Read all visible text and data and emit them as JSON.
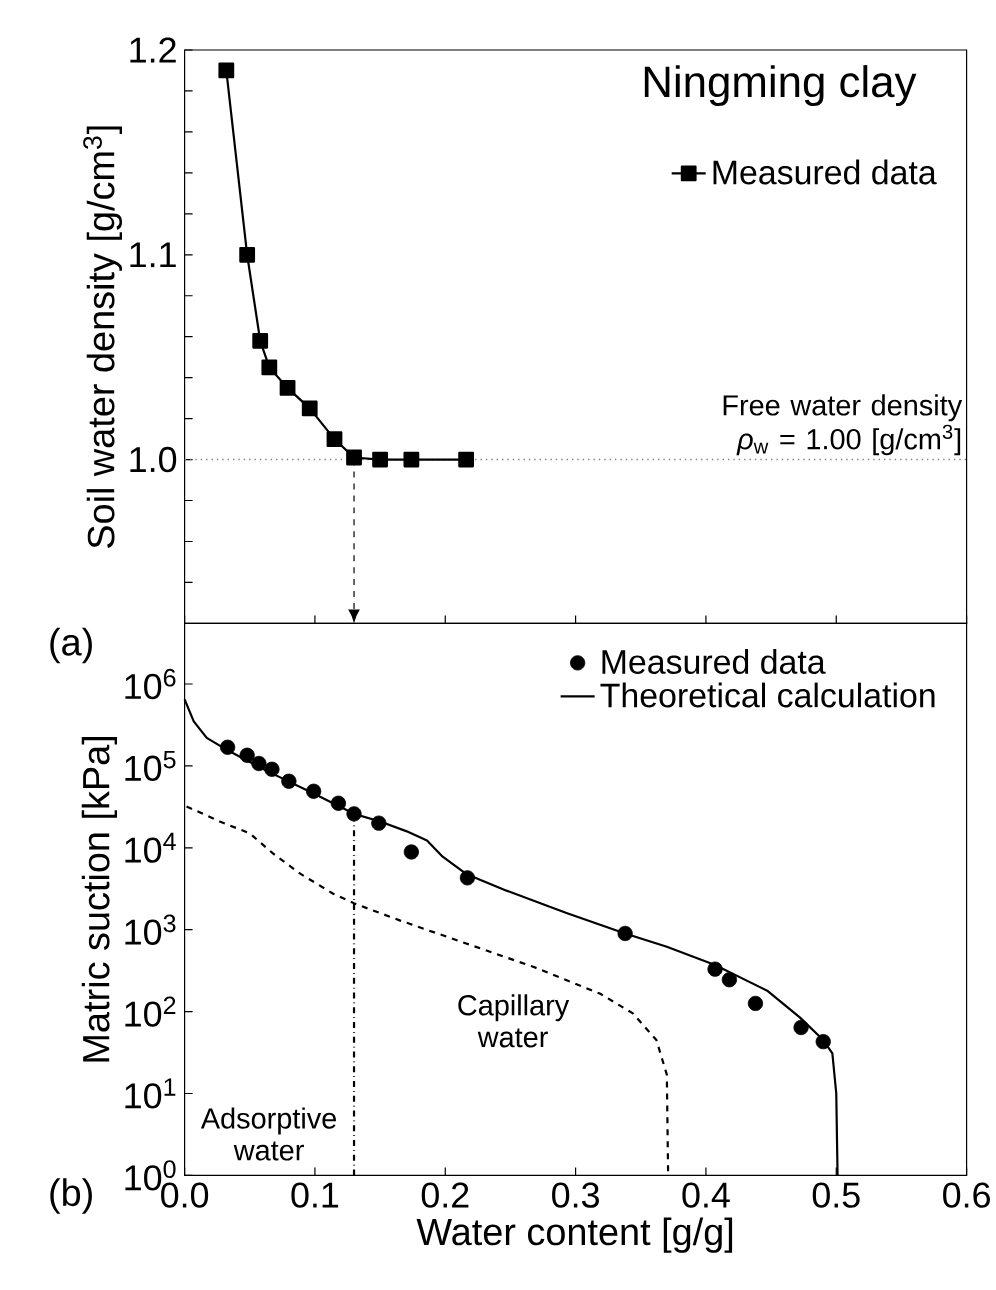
{
  "chart_data": [
    {
      "type": "line",
      "title": "Ningming clay",
      "ylabel": "Soil water density [g/cm$^{3}$]",
      "marker": "square",
      "legend": "top right",
      "tick_labels": "y",
      "xlim": [
        0,
        0.6
      ],
      "ylim": [
        0.92,
        1.2
      ],
      "xticks": [
        {
          "value": 0,
          "label": null
        },
        {
          "value": 0.1,
          "label": null
        },
        {
          "value": 0.2,
          "label": null
        },
        {
          "value": 0.3,
          "label": null
        },
        {
          "value": 0.4,
          "label": null
        },
        {
          "value": 0.5,
          "label": null
        },
        {
          "value": 0.6,
          "label": null
        }
      ],
      "yticks": [
        {
          "value": 0.94,
          "label": null
        },
        {
          "value": 0.96,
          "label": null
        },
        {
          "value": 0.98,
          "label": null
        },
        {
          "value": 1.0,
          "label": "1.0"
        },
        {
          "value": 1.02,
          "label": null
        },
        {
          "value": 1.04,
          "label": null
        },
        {
          "value": 1.06,
          "label": null
        },
        {
          "value": 1.08,
          "label": null
        },
        1.1,
        {
          "value": 1.12,
          "label": null
        },
        {
          "value": 1.14,
          "label": null
        },
        {
          "value": 1.16,
          "label": null
        },
        {
          "value": 1.18,
          "label": null
        },
        1.2
      ],
      "series": [
        {
          "name": "Measured data",
          "color": "#000000",
          "x": [
            0.032,
            0.048,
            0.058,
            0.065,
            0.079,
            0.096,
            0.115,
            0.13,
            0.15,
            0.174,
            0.216
          ],
          "values": [
            1.19,
            1.1,
            1.058,
            1.045,
            1.035,
            1.025,
            1.01,
            1.001,
            1.0,
            1.0,
            1.0
          ]
        }
      ],
      "ref_lines": [
        {
          "axis": "y",
          "value": 1.0,
          "label": "Free water density *ρ*$_{w}$ = 1.00 [g/cm$^{3}$]",
          "line_style": "dotted",
          "color": "#808080"
        },
        {
          "axis": "x",
          "value": 0.13,
          "line_style": "dashed",
          "color": "#000000"
        }
      ],
      "annotations": [
        "(a)"
      ]
    },
    {
      "type": "line",
      "xlabel": "Water content [g/g]",
      "ylabel": "Matric suction [kPa]",
      "log": "y",
      "legend": "top right",
      "marker": "circle",
      "xlim": [
        0,
        0.6
      ],
      "ylim": [
        1,
        5500000
      ],
      "xticks": [
        {
          "value": 0,
          "label": "0.0"
        },
        0.1,
        0.2,
        0.3,
        0.4,
        0.5,
        0.6
      ],
      "yticks": [
        {
          "value": 1,
          "label": "10$^{0}$"
        },
        {
          "value": 10,
          "label": "10$^{1}$"
        },
        {
          "value": 100,
          "label": "10$^{2}$"
        },
        {
          "value": 1000,
          "label": "10$^{3}$"
        },
        {
          "value": 10000,
          "label": "10$^{4}$"
        },
        {
          "value": 100000,
          "label": "10$^{5}$"
        },
        {
          "value": 1000000,
          "label": "10$^{6}$"
        }
      ],
      "series": [
        {
          "name": "Measured data",
          "type": "scatter",
          "color": "#000000",
          "x": [
            0.033,
            0.048,
            0.057,
            0.067,
            0.08,
            0.099,
            0.118,
            0.13,
            0.149,
            0.174,
            0.217,
            0.338,
            0.407,
            0.418,
            0.438,
            0.473,
            0.49
          ],
          "values": [
            169000,
            135000,
            107000,
            91000,
            65000,
            49000,
            35000,
            26000,
            20000,
            8900,
            4300,
            900,
            330,
            245,
            126,
            64,
            43
          ]
        },
        {
          "name": "Theoretical calculation",
          "type": "line",
          "marker": "none",
          "line_style": "solid",
          "color": "#000000",
          "x": [
            0,
            0.007,
            0.017,
            0.033,
            0.063,
            0.099,
            0.13,
            0.15,
            0.17,
            0.186,
            0.198,
            0.216,
            0.247,
            0.293,
            0.338,
            0.37,
            0.407,
            0.447,
            0.472,
            0.49,
            0.497,
            0.5,
            0.501
          ],
          "values": [
            650000,
            350000,
            220000,
            155000,
            87000,
            46000,
            26000,
            21000,
            16000,
            12300,
            7800,
            4800,
            3000,
            1600,
            900,
            620,
            370,
            180,
            85,
            45,
            31,
            10,
            1
          ]
        },
        {
          "type": "line",
          "marker": "none",
          "line_style": "dashed",
          "color": "#000000",
          "x": [
            0.0015,
            0.027,
            0.05,
            0.068,
            0.089,
            0.114,
            0.13,
            0.165,
            0.216,
            0.268,
            0.319,
            0.344,
            0.362,
            0.37,
            0.371
          ],
          "values": [
            32000,
            21000,
            15000,
            8500,
            4800,
            2750,
            2100,
            1300,
            680,
            350,
            165,
            95,
            45,
            17,
            1
          ]
        },
        {
          "type": "line",
          "marker": "none",
          "line_style": "dashdot",
          "color": "#000000",
          "x": [
            0.13,
            0.13
          ],
          "values": [
            1,
            26000
          ]
        }
      ],
      "annotations": [
        "(b)",
        "Adsorptive water",
        "Capillary water"
      ]
    }
  ]
}
